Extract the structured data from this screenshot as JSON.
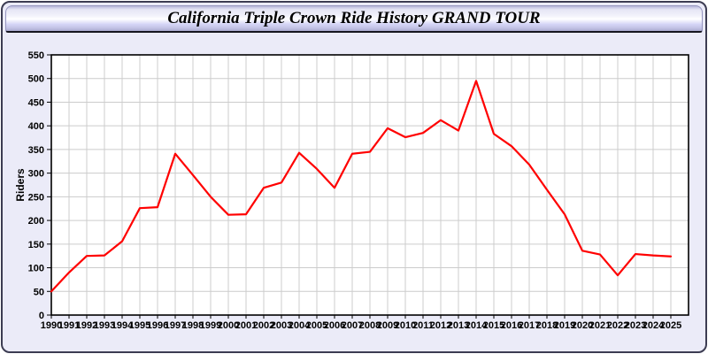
{
  "window": {
    "title": "California Triple Crown Ride History GRAND TOUR"
  },
  "colors": {
    "line": "#ff0000",
    "plot_bg": "#ffffff",
    "grid": "#cccccc",
    "axis": "#000000",
    "text": "#000000",
    "panel_bg": "#ebebf8",
    "panel_border": "#3c3c52",
    "titlebar_border": "#9494bd"
  },
  "chart_data": {
    "type": "line",
    "title": "California Triple Crown Ride History GRAND TOUR",
    "xlabel": "",
    "ylabel": "Riders",
    "ylim": [
      0,
      550
    ],
    "ytick_step": 50,
    "grid": true,
    "legend_position": "none",
    "x": [
      1990,
      1991,
      1992,
      1993,
      1994,
      1995,
      1996,
      1997,
      1998,
      1999,
      2000,
      2001,
      2002,
      2003,
      2004,
      2005,
      2006,
      2007,
      2008,
      2009,
      2010,
      2011,
      2012,
      2013,
      2014,
      2015,
      2016,
      2017,
      2018,
      2019,
      2020,
      2021,
      2022,
      2023,
      2024,
      2025
    ],
    "series": [
      {
        "name": "Riders",
        "color": "#ff0000",
        "values": [
          50,
          90,
          125,
          126,
          156,
          226,
          228,
          341,
          296,
          250,
          212,
          213,
          269,
          280,
          343,
          309,
          269,
          341,
          345,
          395,
          376,
          385,
          412,
          390,
          495,
          383,
          357,
          318,
          265,
          213,
          136,
          128,
          84,
          129,
          126,
          124
        ]
      }
    ]
  }
}
